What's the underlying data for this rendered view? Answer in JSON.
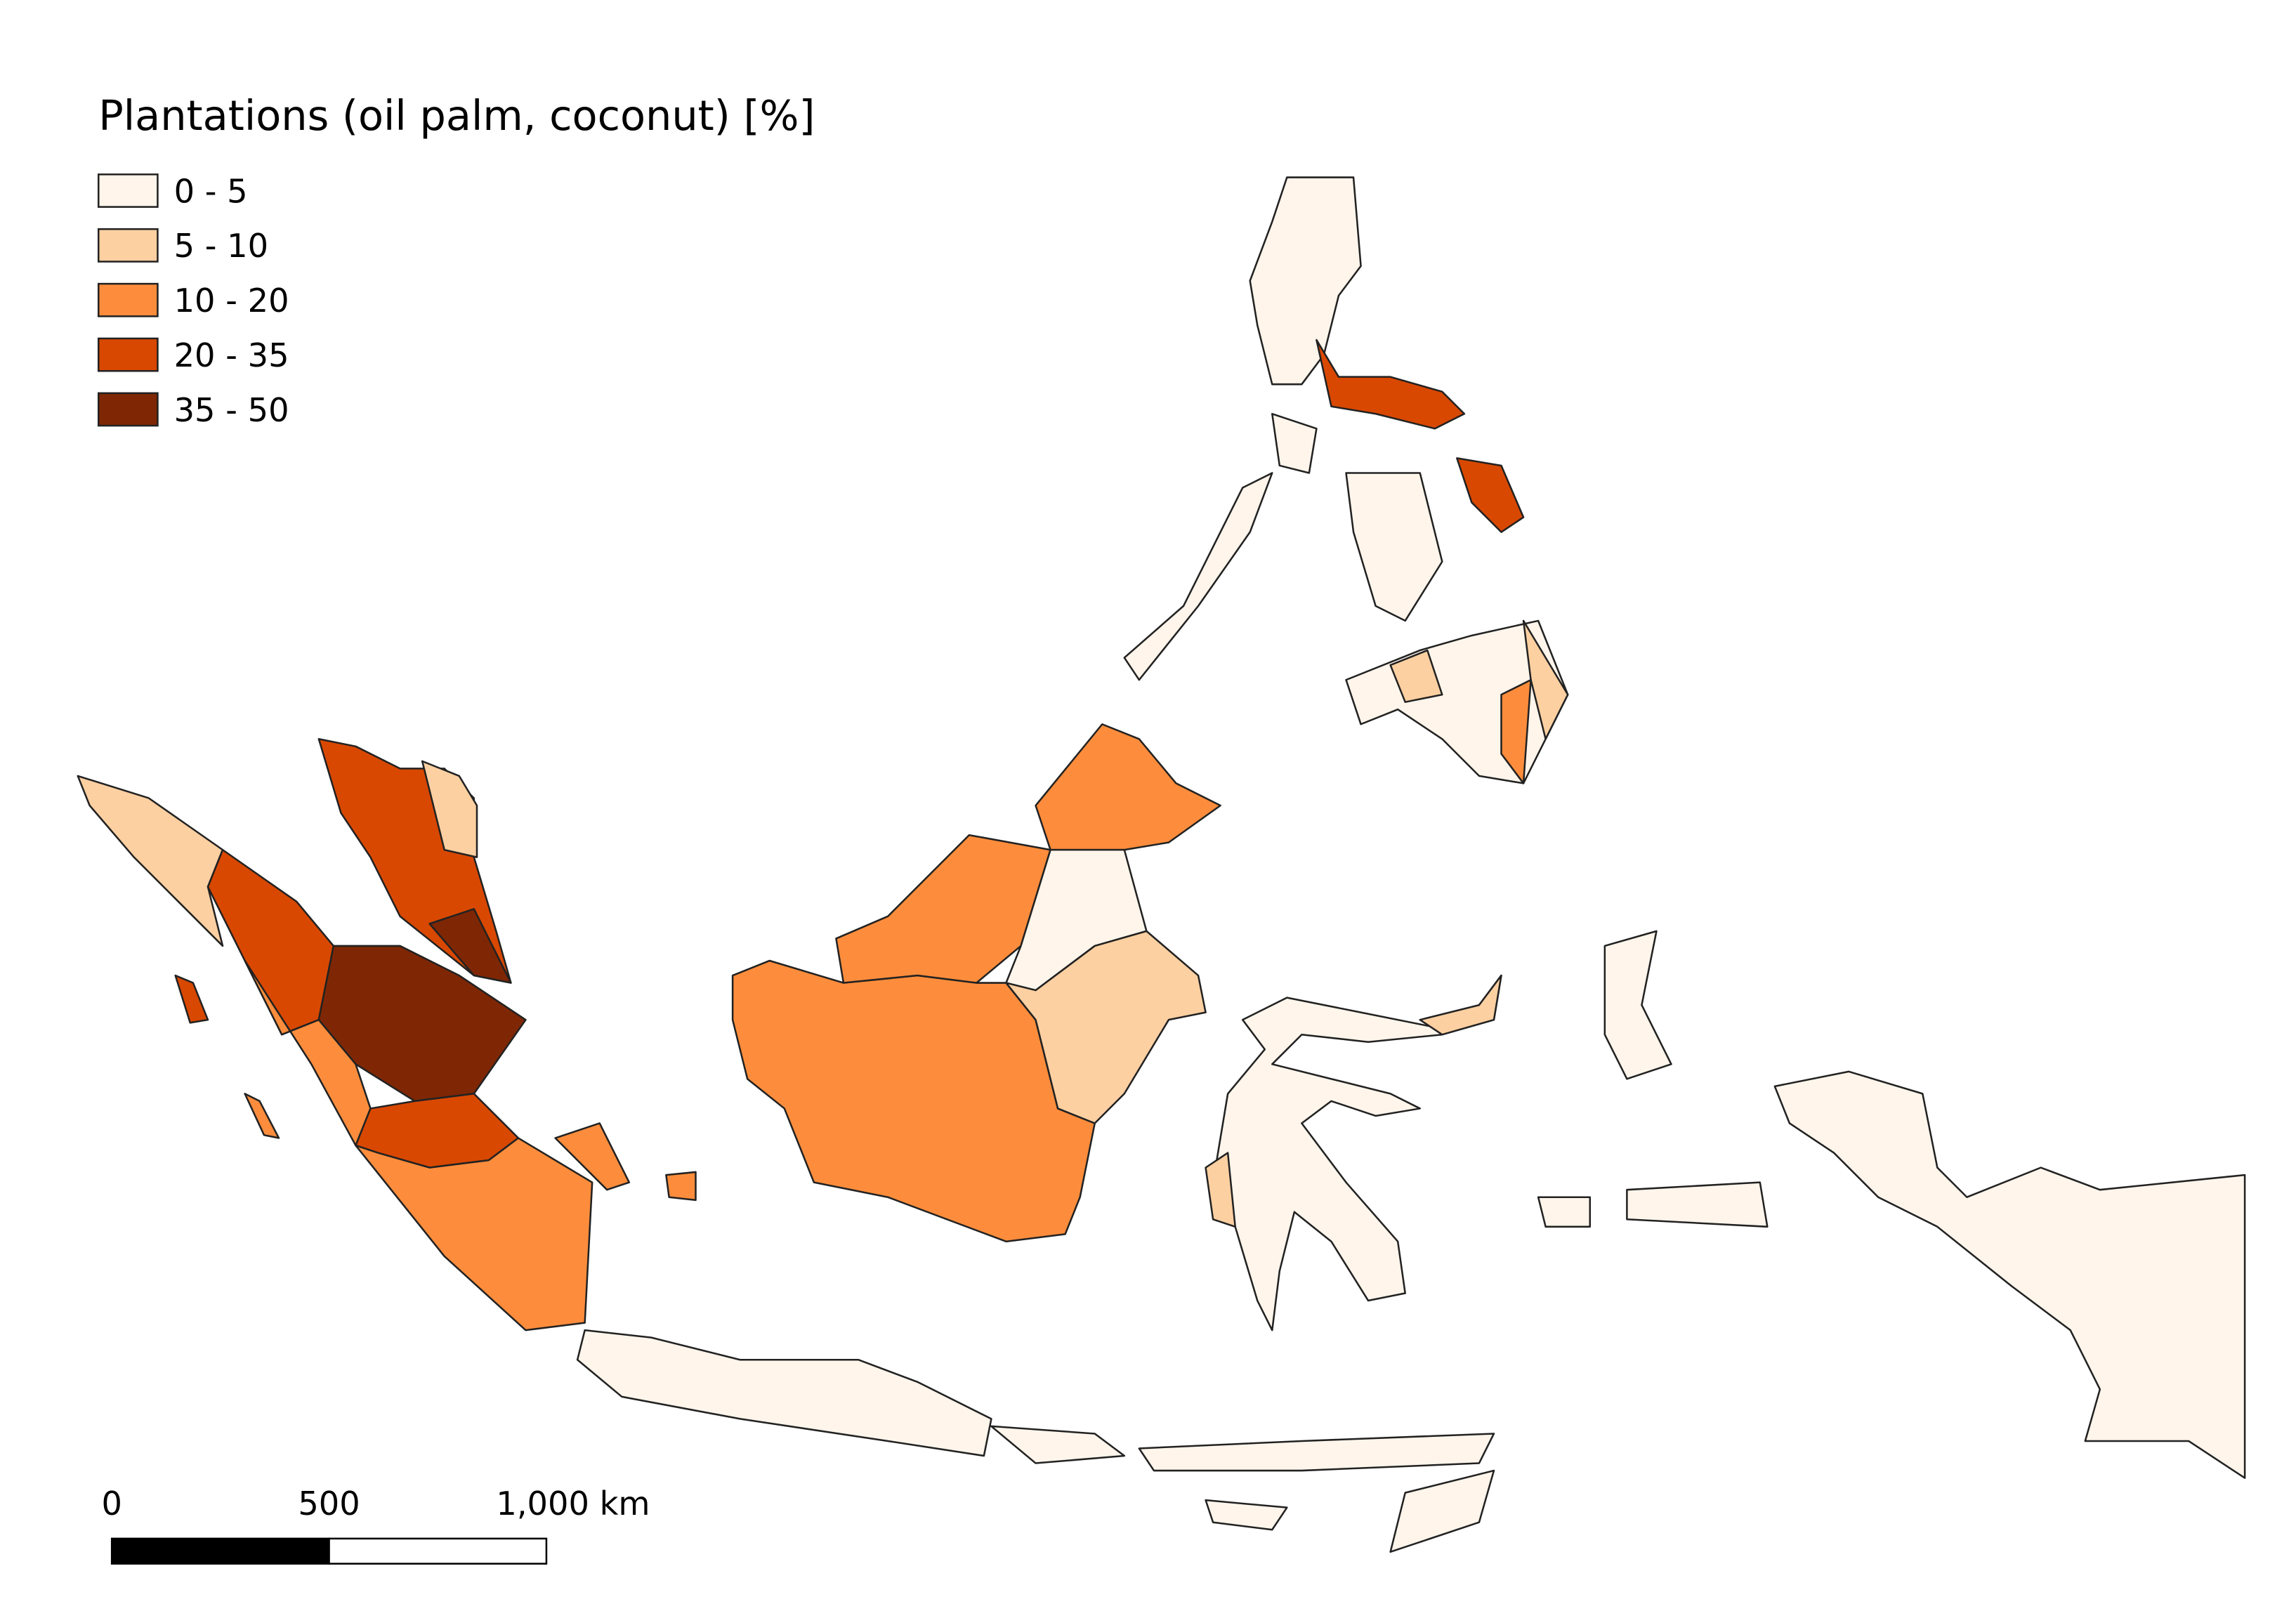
{
  "legend": {
    "title": "Plantations (oil palm, coconut) [%]",
    "items": [
      {
        "label": "0 - 5",
        "color": "#fff5eb"
      },
      {
        "label": "5 - 10",
        "color": "#fdd0a2"
      },
      {
        "label": "10 - 20",
        "color": "#fd8d3c"
      },
      {
        "label": "20 - 35",
        "color": "#d94801"
      },
      {
        "label": "35 - 50",
        "color": "#7f2704"
      }
    ]
  },
  "scale_bar": {
    "labels": [
      "0",
      "500",
      "1,000 km"
    ]
  }
}
